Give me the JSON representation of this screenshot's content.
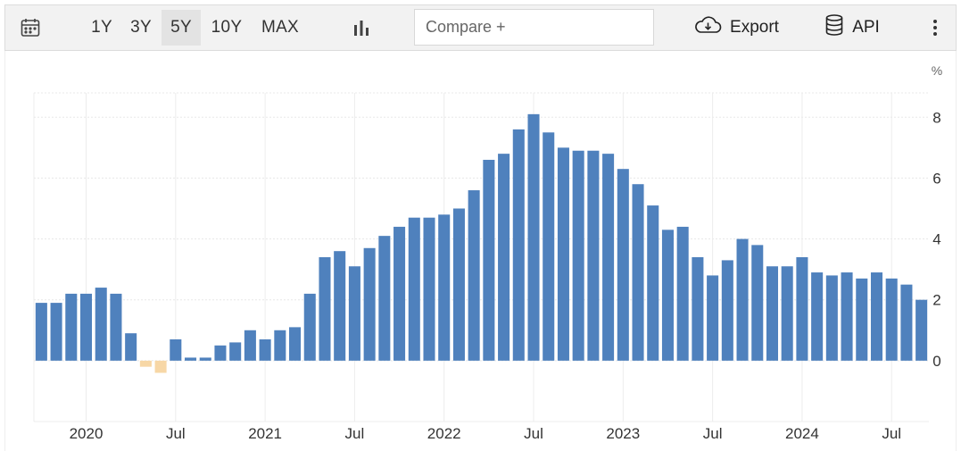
{
  "toolbar": {
    "calendar_icon": "calendar-icon",
    "ranges": [
      {
        "label": "1Y",
        "active": false
      },
      {
        "label": "3Y",
        "active": false
      },
      {
        "label": "5Y",
        "active": true
      },
      {
        "label": "10Y",
        "active": false
      },
      {
        "label": "MAX",
        "active": false
      }
    ],
    "chart_type_icon": "bar-chart-icon",
    "compare_placeholder": "Compare +",
    "compare_value": "",
    "export_label": "Export",
    "export_icon": "cloud-download-icon",
    "api_label": "API",
    "api_icon": "database-icon",
    "more_icon": "vertical-ellipsis-icon"
  },
  "colors": {
    "positive_bar": "#4f81bd",
    "negative_bar": "#f7d7a6",
    "toolbar_bg": "#f2f2f2"
  },
  "chart_data": {
    "type": "bar",
    "title": "",
    "xlabel": "",
    "ylabel": "",
    "unit": "%",
    "ylim": [
      -2.0,
      8.8
    ],
    "yticks": [
      0,
      2,
      4,
      6,
      8
    ],
    "y_axis_side": "right",
    "grid": true,
    "legend": "none",
    "categories": [
      "2019-10",
      "2019-11",
      "2019-12",
      "2020-01",
      "2020-02",
      "2020-03",
      "2020-04",
      "2020-05",
      "2020-06",
      "2020-07",
      "2020-08",
      "2020-09",
      "2020-10",
      "2020-11",
      "2020-12",
      "2021-01",
      "2021-02",
      "2021-03",
      "2021-04",
      "2021-05",
      "2021-06",
      "2021-07",
      "2021-08",
      "2021-09",
      "2021-10",
      "2021-11",
      "2021-12",
      "2022-01",
      "2022-02",
      "2022-03",
      "2022-04",
      "2022-05",
      "2022-06",
      "2022-07",
      "2022-08",
      "2022-09",
      "2022-10",
      "2022-11",
      "2022-12",
      "2023-01",
      "2023-02",
      "2023-03",
      "2023-04",
      "2023-05",
      "2023-06",
      "2023-07",
      "2023-08",
      "2023-09",
      "2023-10",
      "2023-11",
      "2023-12",
      "2024-01",
      "2024-02",
      "2024-03",
      "2024-04",
      "2024-05",
      "2024-06",
      "2024-07",
      "2024-08",
      "2024-09"
    ],
    "values": [
      1.9,
      1.9,
      2.2,
      2.2,
      2.4,
      2.2,
      0.9,
      -0.2,
      -0.4,
      0.7,
      0.1,
      0.1,
      0.5,
      0.6,
      1.0,
      0.7,
      1.0,
      1.1,
      2.2,
      3.4,
      3.6,
      3.1,
      3.7,
      4.1,
      4.4,
      4.7,
      4.7,
      4.8,
      5.0,
      5.6,
      6.6,
      6.8,
      7.6,
      8.1,
      7.5,
      7.0,
      6.9,
      6.9,
      6.8,
      6.3,
      5.8,
      5.1,
      4.3,
      4.4,
      3.4,
      2.8,
      3.3,
      4.0,
      3.8,
      3.1,
      3.1,
      3.4,
      2.9,
      2.8,
      2.9,
      2.7,
      2.9,
      2.7,
      2.5,
      2.0
    ],
    "x_ticks": [
      {
        "category": "2020-01",
        "label": "2020"
      },
      {
        "category": "2020-07",
        "label": "Jul"
      },
      {
        "category": "2021-01",
        "label": "2021"
      },
      {
        "category": "2021-07",
        "label": "Jul"
      },
      {
        "category": "2022-01",
        "label": "2022"
      },
      {
        "category": "2022-07",
        "label": "Jul"
      },
      {
        "category": "2023-01",
        "label": "2023"
      },
      {
        "category": "2023-07",
        "label": "Jul"
      },
      {
        "category": "2024-01",
        "label": "2024"
      },
      {
        "category": "2024-07",
        "label": "Jul"
      }
    ]
  }
}
